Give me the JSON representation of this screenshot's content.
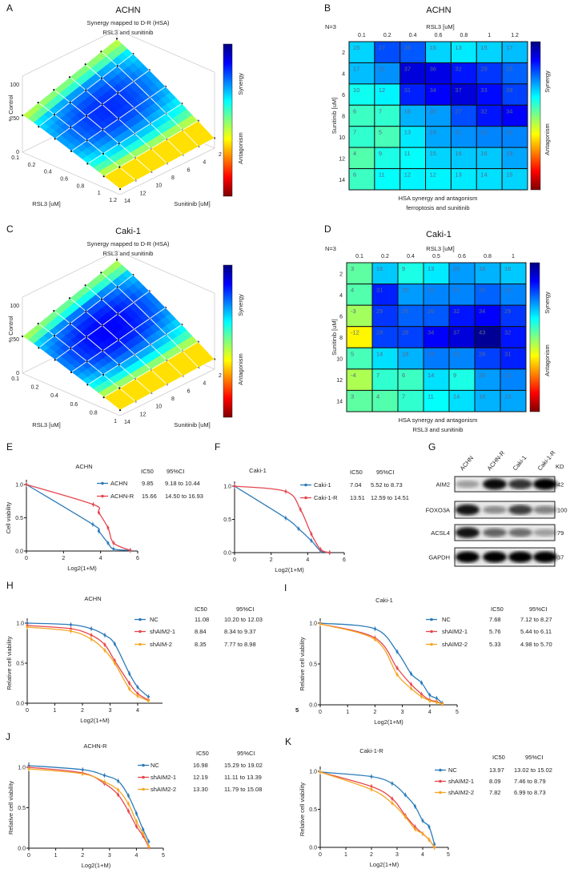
{
  "colors": {
    "blue": "#2b7bb9",
    "red": "#e5474f",
    "orange": "#f4a622",
    "axis": "#111111"
  },
  "chart_data": [
    {
      "id": "A",
      "letter": "A",
      "type": "surface",
      "title": "ACHN",
      "subtitle": [
        "Synergy mapped to D-R (HSA)",
        "RSL3 and sunitinib"
      ],
      "zlabel": "% Control",
      "zticks": [
        "0",
        "50",
        "100"
      ],
      "xlabel": "RSL3 [uM]",
      "xticks": [
        "0.1",
        "0.2",
        "0.4",
        "0.6",
        "0.8",
        "1",
        "1.2"
      ],
      "ylabel": "Sunitinib [uM]",
      "yticks": [
        "2",
        "4",
        "6",
        "8",
        "10",
        "12",
        "14"
      ],
      "colorbar": {
        "top": "Synergy",
        "bottom": "Antagonism"
      }
    },
    {
      "id": "B",
      "letter": "B",
      "type": "heatmap",
      "title": "ACHN",
      "n_label": "N=3",
      "xlabel": "RSL3 [uM]",
      "ylabel": "Sunitinib [uM]",
      "cols": [
        "0.1",
        "0.2",
        "0.4",
        "0.6",
        "0.8",
        "1",
        "1.2"
      ],
      "rows": [
        "2",
        "4",
        "6",
        "8",
        "10",
        "12",
        "14"
      ],
      "values": [
        [
          15,
          27,
          26,
          15,
          13,
          15,
          17
        ],
        [
          17,
          21,
          37,
          36,
          32,
          29,
          25
        ],
        [
          10,
          12,
          31,
          34,
          37,
          33,
          28
        ],
        [
          6,
          7,
          18,
          20,
          27,
          32,
          34
        ],
        [
          7,
          5,
          13,
          19,
          21,
          22,
          22
        ],
        [
          4,
          9,
          11,
          15,
          16,
          16,
          19
        ],
        [
          6,
          11,
          12,
          12,
          13,
          14,
          15
        ]
      ],
      "colorbar": {
        "top": "Synergy",
        "bottom": "Antagonism"
      },
      "caption": [
        "HSA synergy and antagonism",
        "ferroptosis and sunitinib"
      ]
    },
    {
      "id": "C",
      "letter": "C",
      "type": "surface",
      "title": "Caki-1",
      "subtitle": [
        "Synergy mapped to D-R (HSA)",
        "RSL3 and sunitinib"
      ],
      "zlabel": "% Control",
      "zticks": [
        "0",
        "50",
        "100"
      ],
      "xlabel": "RSL3 [uM]",
      "xticks": [
        "0.1",
        "0.2",
        "0.4",
        "0.6",
        "0.8",
        "1"
      ],
      "ylabel": "Sunitinib [uM]",
      "yticks": [
        "2",
        "4",
        "6",
        "8",
        "10",
        "12",
        "14"
      ],
      "colorbar": {
        "top": "Synergy",
        "bottom": "Antagonism"
      }
    },
    {
      "id": "D",
      "letter": "D",
      "type": "heatmap",
      "title": "Caki-1",
      "n_label": "N=3",
      "xlabel": "RSL3 [uM]",
      "ylabel": "Sunitinib [uM]",
      "cols": [
        "0.1",
        "0.2",
        "0.4",
        "0.5",
        "0.6",
        "0.8",
        "1"
      ],
      "rows": [
        "2",
        "4",
        "6",
        "8",
        "10",
        "12",
        "14"
      ],
      "values": [
        [
          3,
          16,
          9,
          13,
          20,
          18,
          16
        ],
        [
          4,
          31,
          20,
          22,
          22,
          25,
          22
        ],
        [
          -3,
          29,
          25,
          26,
          32,
          34,
          29
        ],
        [
          -12,
          28,
          28,
          34,
          37,
          43,
          32
        ],
        [
          5,
          14,
          18,
          23,
          22,
          28,
          31
        ],
        [
          -4,
          7,
          6,
          14,
          9,
          20,
          22
        ],
        [
          3,
          4,
          7,
          11,
          14,
          18,
          19
        ]
      ],
      "colorbar": {
        "top": "Synergy",
        "bottom": "Antagonism"
      },
      "caption": [
        "HSA synergy and antagonism",
        "RSL3 and sunitinib"
      ]
    },
    {
      "id": "E",
      "letter": "E",
      "type": "line",
      "title": "ACHN",
      "xlabel": "Log2(1+M)",
      "ylabel": "Cell viability",
      "xlim": [
        0,
        6
      ],
      "xticks": [
        "0",
        "2",
        "4",
        "6"
      ],
      "ylim": [
        0,
        1
      ],
      "yticks": [
        "0.0",
        "0.5",
        "1.0"
      ],
      "legend_header": [
        "IC50",
        "95%CI"
      ],
      "series": [
        {
          "name": "ACHN",
          "ic50": "9.85",
          "ci": "9.18 to 10.44",
          "color": "#2b7bb9",
          "points": [
            [
              0,
              1.0
            ],
            [
              3.58,
              0.4
            ],
            [
              3.9,
              0.3
            ],
            [
              4.4,
              0.12
            ],
            [
              4.7,
              0.03
            ],
            [
              5.6,
              0.01
            ]
          ]
        },
        {
          "name": "ACHN-R",
          "ic50": "15.66",
          "ci": "14.50 to 16.93",
          "color": "#e5474f",
          "points": [
            [
              0,
              1.0
            ],
            [
              3.6,
              0.7
            ],
            [
              3.9,
              0.58
            ],
            [
              4.4,
              0.35
            ],
            [
              4.7,
              0.12
            ],
            [
              5.6,
              0.01
            ]
          ]
        }
      ]
    },
    {
      "id": "F",
      "letter": "F",
      "type": "line",
      "title": "Caki-1",
      "xlabel": "Log2(1+M)",
      "ylabel": "",
      "xlim": [
        0,
        6
      ],
      "xticks": [
        "0",
        "2",
        "4",
        "6"
      ],
      "ylim": [
        0,
        1
      ],
      "yticks": [
        "0.0",
        "0.5",
        "1.0"
      ],
      "legend_header": [
        "IC50",
        "95%CI"
      ],
      "series": [
        {
          "name": "Caki-1",
          "ic50": "7.04",
          "ci": "5.52 to 8.73",
          "color": "#2b7bb9",
          "points": [
            [
              0,
              1.0
            ],
            [
              2.8,
              0.52
            ],
            [
              3.5,
              0.36
            ],
            [
              4.2,
              0.18
            ],
            [
              4.7,
              0.03
            ],
            [
              5.2,
              0.0
            ]
          ]
        },
        {
          "name": "Caki-1-R",
          "ic50": "13.51",
          "ci": "12.59 to 14.51",
          "color": "#e5474f",
          "points": [
            [
              0,
              1.0
            ],
            [
              2.8,
              0.92
            ],
            [
              3.6,
              0.65
            ],
            [
              4.2,
              0.28
            ],
            [
              4.7,
              0.05
            ],
            [
              5.2,
              0.0
            ]
          ]
        }
      ]
    },
    {
      "id": "H",
      "letter": "H",
      "type": "line",
      "title": "ACHN",
      "xlabel": "Log2(1+M)",
      "ylabel": "Relative cell viability",
      "xlim": [
        0,
        4.9
      ],
      "xticks": [
        "0",
        "1",
        "2",
        "3",
        "4"
      ],
      "ylim": [
        0,
        1
      ],
      "yticks": [
        "0.0",
        "0.5",
        "1.0"
      ],
      "legend_header": [
        "IC50",
        "95%CI"
      ],
      "series": [
        {
          "name": "NC",
          "ic50": "11.08",
          "ci": "10.20 to 12.03",
          "color": "#2b7bb9",
          "points": [
            [
              0,
              1.0
            ],
            [
              1.58,
              0.98
            ],
            [
              2.32,
              0.93
            ],
            [
              2.81,
              0.85
            ],
            [
              3.17,
              0.74
            ],
            [
              3.7,
              0.37
            ],
            [
              4.0,
              0.2
            ],
            [
              4.39,
              0.08
            ]
          ]
        },
        {
          "name": "shAIM2-1",
          "ic50": "8.84",
          "ci": "8.34 to 9.37",
          "color": "#e5474f",
          "points": [
            [
              0,
              0.97
            ],
            [
              1.58,
              0.93
            ],
            [
              2.32,
              0.85
            ],
            [
              2.81,
              0.73
            ],
            [
              3.17,
              0.53
            ],
            [
              3.7,
              0.25
            ],
            [
              4.0,
              0.12
            ],
            [
              4.39,
              0.04
            ]
          ]
        },
        {
          "name": "shAIM-2",
          "ic50": "8.35",
          "ci": "7.77 to 8.98",
          "color": "#f4a622",
          "points": [
            [
              0,
              0.95
            ],
            [
              1.58,
              0.9
            ],
            [
              2.32,
              0.8
            ],
            [
              2.81,
              0.66
            ],
            [
              3.17,
              0.5
            ],
            [
              3.7,
              0.18
            ],
            [
              4.0,
              0.09
            ],
            [
              4.39,
              0.03
            ]
          ]
        }
      ]
    },
    {
      "id": "I",
      "letter": "I",
      "type": "line",
      "title": "Caki-1",
      "stray_label": "5",
      "xlabel": "Log2(1+M)",
      "ylabel": "Relative cell viability",
      "xlim": [
        0,
        5
      ],
      "xticks": [
        "0",
        "1",
        "2",
        "3",
        "4",
        "5"
      ],
      "ylim": [
        0,
        1
      ],
      "yticks": [
        "0.0",
        "0.5",
        "1.0"
      ],
      "legend_header": [
        "IC50",
        "95%CI"
      ],
      "series": [
        {
          "name": "NC",
          "ic50": "7.68",
          "ci": "7.12 to 8.27",
          "color": "#2b7bb9",
          "points": [
            [
              0,
              1.0
            ],
            [
              2.0,
              0.93
            ],
            [
              2.81,
              0.65
            ],
            [
              3.32,
              0.38
            ],
            [
              3.7,
              0.27
            ],
            [
              4.0,
              0.12
            ],
            [
              4.25,
              0.08
            ],
            [
              4.46,
              0.02
            ]
          ]
        },
        {
          "name": "shAIM2-1",
          "ic50": "5.76",
          "ci": "5.44 to 6.11",
          "color": "#e5474f",
          "points": [
            [
              0,
              0.99
            ],
            [
              2.0,
              0.82
            ],
            [
              2.81,
              0.45
            ],
            [
              3.32,
              0.25
            ],
            [
              3.7,
              0.13
            ],
            [
              4.0,
              0.06
            ],
            [
              4.25,
              0.04
            ],
            [
              4.46,
              0.01
            ]
          ]
        },
        {
          "name": "shAIM2-2",
          "ic50": "5.33",
          "ci": "4.98 to 5.70",
          "color": "#f4a622",
          "points": [
            [
              0,
              0.99
            ],
            [
              2.0,
              0.8
            ],
            [
              2.81,
              0.37
            ],
            [
              3.32,
              0.2
            ],
            [
              3.7,
              0.1
            ],
            [
              4.0,
              0.05
            ],
            [
              4.25,
              0.03
            ],
            [
              4.46,
              0.01
            ]
          ]
        }
      ]
    },
    {
      "id": "J",
      "letter": "J",
      "type": "line",
      "title": "ACHN-R",
      "xlabel": "Log2(1+M)",
      "ylabel": "Relative cell viability",
      "xlim": [
        0,
        5
      ],
      "xticks": [
        "0",
        "1",
        "2",
        "3",
        "4",
        "5"
      ],
      "ylim": [
        0,
        1
      ],
      "yticks": [
        "0.0",
        "0.5",
        "1.0"
      ],
      "legend_header": [
        "IC50",
        "95%CI"
      ],
      "series": [
        {
          "name": "NC",
          "ic50": "16.98",
          "ci": "15.29 to 19.02",
          "color": "#2b7bb9",
          "points": [
            [
              0,
              1.02
            ],
            [
              2.0,
              0.97
            ],
            [
              2.81,
              0.9
            ],
            [
              3.32,
              0.83
            ],
            [
              3.7,
              0.65
            ],
            [
              4.0,
              0.43
            ],
            [
              4.25,
              0.23
            ],
            [
              4.46,
              0.08
            ]
          ]
        },
        {
          "name": "shAIM2-1",
          "ic50": "12.19",
          "ci": "11.11 to 13.39",
          "color": "#e5474f",
          "points": [
            [
              0,
              1.0
            ],
            [
              2.0,
              0.93
            ],
            [
              2.81,
              0.8
            ],
            [
              3.32,
              0.66
            ],
            [
              3.7,
              0.46
            ],
            [
              4.0,
              0.27
            ],
            [
              4.25,
              0.15
            ],
            [
              4.46,
              0.01
            ]
          ]
        },
        {
          "name": "shAIM2-2",
          "ic50": "13.30",
          "ci": "11.79 to 15.08",
          "color": "#f4a622",
          "points": [
            [
              0,
              0.98
            ],
            [
              2.0,
              0.92
            ],
            [
              2.81,
              0.82
            ],
            [
              3.32,
              0.72
            ],
            [
              3.7,
              0.55
            ],
            [
              4.0,
              0.33
            ],
            [
              4.25,
              0.18
            ],
            [
              4.46,
              0.02
            ]
          ]
        }
      ]
    },
    {
      "id": "K",
      "letter": "K",
      "type": "line",
      "title": "Caki-1-R",
      "xlabel": "Log2(1+M)",
      "ylabel": "Relative cell viability",
      "xlim": [
        0,
        5
      ],
      "xticks": [
        "0",
        "1",
        "2",
        "3",
        "4",
        "5"
      ],
      "ylim": [
        0,
        1
      ],
      "yticks": [
        "0.0",
        "0.5",
        "1.0"
      ],
      "legend_header": [
        "IC50",
        "95%CI"
      ],
      "series": [
        {
          "name": "NC",
          "ic50": "13.97",
          "ci": "13.02 to 15.02",
          "color": "#2b7bb9",
          "points": [
            [
              0,
              0.99
            ],
            [
              2.0,
              0.93
            ],
            [
              2.81,
              0.84
            ],
            [
              3.32,
              0.69
            ],
            [
              3.7,
              0.54
            ],
            [
              4.0,
              0.35
            ],
            [
              4.25,
              0.27
            ],
            [
              4.46,
              0.04
            ]
          ]
        },
        {
          "name": "shAIM2-1",
          "ic50": "8.09",
          "ci": "7.46 to 8.79",
          "color": "#e5474f",
          "points": [
            [
              0,
              0.99
            ],
            [
              2.0,
              0.8
            ],
            [
              2.81,
              0.64
            ],
            [
              3.32,
              0.42
            ],
            [
              3.7,
              0.27
            ],
            [
              4.0,
              0.18
            ],
            [
              4.25,
              0.1
            ],
            [
              4.46,
              0.0
            ]
          ]
        },
        {
          "name": "shAIM2-2",
          "ic50": "7.82",
          "ci": "6.99 to 8.73",
          "color": "#f4a622",
          "points": [
            [
              0,
              0.99
            ],
            [
              2.0,
              0.76
            ],
            [
              2.81,
              0.58
            ],
            [
              3.32,
              0.4
            ],
            [
              3.7,
              0.24
            ],
            [
              4.0,
              0.18
            ],
            [
              4.25,
              0.1
            ],
            [
              4.46,
              0.0
            ]
          ]
        }
      ]
    }
  ],
  "western_blot": {
    "letter": "G",
    "lanes": [
      "ACHN",
      "ACHN-R",
      "Caki-1",
      "Caki-1-R"
    ],
    "kd_header": "KD",
    "proteins": [
      {
        "name": "AIM2",
        "kd": "42",
        "intensity": [
          0.2,
          0.95,
          0.75,
          1.0
        ]
      },
      {
        "name": "FOXO3A",
        "kd": "100",
        "intensity": [
          0.9,
          0.3,
          0.7,
          0.35
        ]
      },
      {
        "name": "ACSL4",
        "kd": "79",
        "intensity": [
          0.9,
          0.5,
          0.45,
          0.2
        ]
      },
      {
        "name": "GAPDH",
        "kd": "37",
        "intensity": [
          1.0,
          1.0,
          1.0,
          1.0
        ]
      }
    ]
  }
}
